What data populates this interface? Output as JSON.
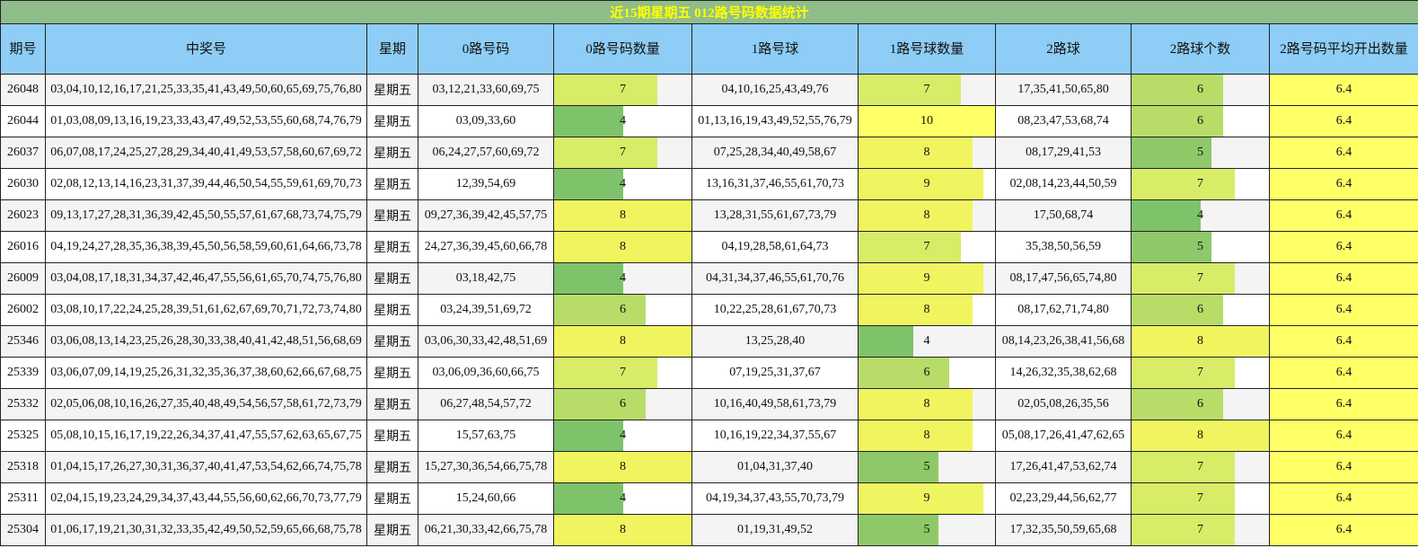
{
  "title": "近15期星期五 012路号码数据统计",
  "headers": [
    "期号",
    "中奖号",
    "星期",
    "0路号码",
    "0路号码数量",
    "1路号球",
    "1路号球数量",
    "2路球",
    "2路球个数",
    "2路号码平均开出数量"
  ],
  "bar_scale": {
    "min": 4,
    "max": 10
  },
  "rows": [
    {
      "issue": "26048",
      "numbers": "03,04,10,12,16,17,21,25,33,35,41,43,49,50,60,65,69,75,76,80",
      "weekday": "星期五",
      "r0": "03,12,21,33,60,69,75",
      "r0_count": 7,
      "r1": "04,10,16,25,43,49,76",
      "r1_count": 7,
      "r2": "17,35,41,50,65,80",
      "r2_count": 6,
      "avg": "6.4"
    },
    {
      "issue": "26044",
      "numbers": "01,03,08,09,13,16,19,23,33,43,47,49,52,53,55,60,68,74,76,79",
      "weekday": "星期五",
      "r0": "03,09,33,60",
      "r0_count": 4,
      "r1": "01,13,16,19,43,49,52,55,76,79",
      "r1_count": 10,
      "r2": "08,23,47,53,68,74",
      "r2_count": 6,
      "avg": "6.4"
    },
    {
      "issue": "26037",
      "numbers": "06,07,08,17,24,25,27,28,29,34,40,41,49,53,57,58,60,67,69,72",
      "weekday": "星期五",
      "r0": "06,24,27,57,60,69,72",
      "r0_count": 7,
      "r1": "07,25,28,34,40,49,58,67",
      "r1_count": 8,
      "r2": "08,17,29,41,53",
      "r2_count": 5,
      "avg": "6.4"
    },
    {
      "issue": "26030",
      "numbers": "02,08,12,13,14,16,23,31,37,39,44,46,50,54,55,59,61,69,70,73",
      "weekday": "星期五",
      "r0": "12,39,54,69",
      "r0_count": 4,
      "r1": "13,16,31,37,46,55,61,70,73",
      "r1_count": 9,
      "r2": "02,08,14,23,44,50,59",
      "r2_count": 7,
      "avg": "6.4"
    },
    {
      "issue": "26023",
      "numbers": "09,13,17,27,28,31,36,39,42,45,50,55,57,61,67,68,73,74,75,79",
      "weekday": "星期五",
      "r0": "09,27,36,39,42,45,57,75",
      "r0_count": 8,
      "r1": "13,28,31,55,61,67,73,79",
      "r1_count": 8,
      "r2": "17,50,68,74",
      "r2_count": 4,
      "avg": "6.4"
    },
    {
      "issue": "26016",
      "numbers": "04,19,24,27,28,35,36,38,39,45,50,56,58,59,60,61,64,66,73,78",
      "weekday": "星期五",
      "r0": "24,27,36,39,45,60,66,78",
      "r0_count": 8,
      "r1": "04,19,28,58,61,64,73",
      "r1_count": 7,
      "r2": "35,38,50,56,59",
      "r2_count": 5,
      "avg": "6.4"
    },
    {
      "issue": "26009",
      "numbers": "03,04,08,17,18,31,34,37,42,46,47,55,56,61,65,70,74,75,76,80",
      "weekday": "星期五",
      "r0": "03,18,42,75",
      "r0_count": 4,
      "r1": "04,31,34,37,46,55,61,70,76",
      "r1_count": 9,
      "r2": "08,17,47,56,65,74,80",
      "r2_count": 7,
      "avg": "6.4"
    },
    {
      "issue": "26002",
      "numbers": "03,08,10,17,22,24,25,28,39,51,61,62,67,69,70,71,72,73,74,80",
      "weekday": "星期五",
      "r0": "03,24,39,51,69,72",
      "r0_count": 6,
      "r1": "10,22,25,28,61,67,70,73",
      "r1_count": 8,
      "r2": "08,17,62,71,74,80",
      "r2_count": 6,
      "avg": "6.4"
    },
    {
      "issue": "25346",
      "numbers": "03,06,08,13,14,23,25,26,28,30,33,38,40,41,42,48,51,56,68,69",
      "weekday": "星期五",
      "r0": "03,06,30,33,42,48,51,69",
      "r0_count": 8,
      "r1": "13,25,28,40",
      "r1_count": 4,
      "r2": "08,14,23,26,38,41,56,68",
      "r2_count": 8,
      "avg": "6.4"
    },
    {
      "issue": "25339",
      "numbers": "03,06,07,09,14,19,25,26,31,32,35,36,37,38,60,62,66,67,68,75",
      "weekday": "星期五",
      "r0": "03,06,09,36,60,66,75",
      "r0_count": 7,
      "r1": "07,19,25,31,37,67",
      "r1_count": 6,
      "r2": "14,26,32,35,38,62,68",
      "r2_count": 7,
      "avg": "6.4"
    },
    {
      "issue": "25332",
      "numbers": "02,05,06,08,10,16,26,27,35,40,48,49,54,56,57,58,61,72,73,79",
      "weekday": "星期五",
      "r0": "06,27,48,54,57,72",
      "r0_count": 6,
      "r1": "10,16,40,49,58,61,73,79",
      "r1_count": 8,
      "r2": "02,05,08,26,35,56",
      "r2_count": 6,
      "avg": "6.4"
    },
    {
      "issue": "25325",
      "numbers": "05,08,10,15,16,17,19,22,26,34,37,41,47,55,57,62,63,65,67,75",
      "weekday": "星期五",
      "r0": "15,57,63,75",
      "r0_count": 4,
      "r1": "10,16,19,22,34,37,55,67",
      "r1_count": 8,
      "r2": "05,08,17,26,41,47,62,65",
      "r2_count": 8,
      "avg": "6.4"
    },
    {
      "issue": "25318",
      "numbers": "01,04,15,17,26,27,30,31,36,37,40,41,47,53,54,62,66,74,75,78",
      "weekday": "星期五",
      "r0": "15,27,30,36,54,66,75,78",
      "r0_count": 8,
      "r1": "01,04,31,37,40",
      "r1_count": 5,
      "r2": "17,26,41,47,53,62,74",
      "r2_count": 7,
      "avg": "6.4"
    },
    {
      "issue": "25311",
      "numbers": "02,04,15,19,23,24,29,34,37,43,44,55,56,60,62,66,70,73,77,79",
      "weekday": "星期五",
      "r0": "15,24,60,66",
      "r0_count": 4,
      "r1": "04,19,34,37,43,55,70,73,79",
      "r1_count": 9,
      "r2": "02,23,29,44,56,62,77",
      "r2_count": 7,
      "avg": "6.4"
    },
    {
      "issue": "25304",
      "numbers": "01,06,17,19,21,30,31,32,33,35,42,49,50,52,59,65,66,68,75,78",
      "weekday": "星期五",
      "r0": "06,21,30,33,42,66,75,78",
      "r0_count": 8,
      "r1": "01,19,31,49,52",
      "r1_count": 5,
      "r2": "17,32,35,50,59,65,68",
      "r2_count": 7,
      "avg": "6.4"
    }
  ]
}
